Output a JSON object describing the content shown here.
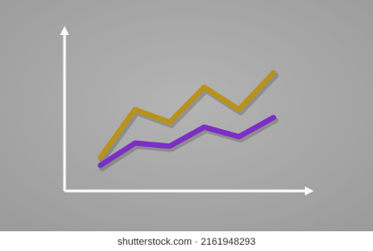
{
  "chart_data": {
    "type": "line",
    "categories": [
      null,
      null,
      null,
      null,
      null,
      null
    ],
    "series": [
      {
        "color": "#b8921c",
        "values": [
          21,
          51,
          43,
          65,
          51,
          74
        ]
      },
      {
        "color": "#7b2fc4",
        "values": [
          16,
          30,
          28,
          40,
          34,
          46
        ]
      }
    ],
    "ylim": [
      0,
      100
    ]
  },
  "watermark": "shutterstock.com · 2161948293"
}
